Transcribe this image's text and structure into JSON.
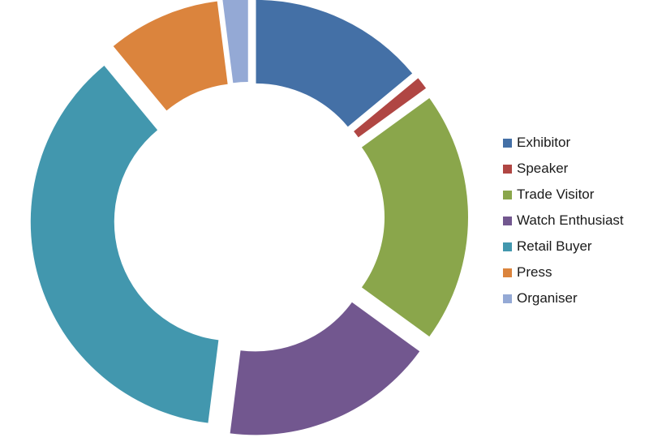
{
  "chart_data": {
    "type": "pie",
    "style": "exploded-donut",
    "categories": [
      "Exhibitor",
      "Speaker",
      "Trade Visitor",
      "Watch Enthusiast",
      "Retail Buyer",
      "Press",
      "Organiser"
    ],
    "values": [
      14,
      1,
      20,
      17,
      37,
      9,
      2
    ],
    "colors": [
      "#4470A6",
      "#B04643",
      "#8AA64B",
      "#72578F",
      "#4297AE",
      "#DB843D",
      "#94A9D5"
    ],
    "legend_position": "right",
    "title": ""
  }
}
